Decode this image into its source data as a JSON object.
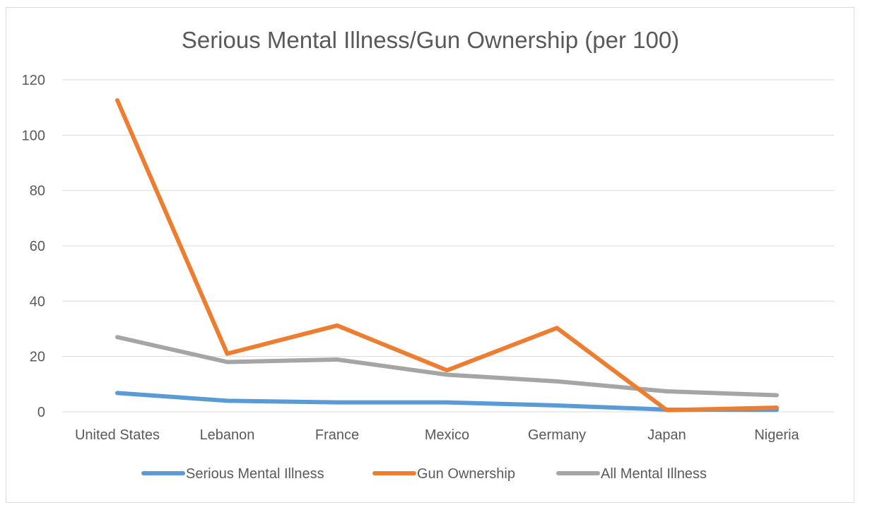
{
  "chart_data": {
    "type": "line",
    "title": "Serious Mental Illness/Gun Ownership (per 100)",
    "xlabel": "",
    "ylabel": "",
    "categories": [
      "United States",
      "Lebanon",
      "France",
      "Mexico",
      "Germany",
      "Japan",
      "Nigeria"
    ],
    "ylim": [
      0,
      120
    ],
    "yticks": [
      0,
      20,
      40,
      60,
      80,
      100,
      120
    ],
    "grid": true,
    "legend": "bottom",
    "series": [
      {
        "name": "Serious Mental Illness",
        "color": "#5b9bd5",
        "values": [
          6.8,
          4.0,
          3.4,
          3.4,
          2.3,
          0.8,
          0.7
        ]
      },
      {
        "name": "Gun Ownership",
        "color": "#ed7d31",
        "values": [
          112.6,
          21.0,
          31.2,
          15.0,
          30.3,
          0.6,
          1.5
        ]
      },
      {
        "name": "All Mental Illness",
        "color": "#a5a5a5",
        "values": [
          27.0,
          18.0,
          18.9,
          13.4,
          11.0,
          7.4,
          6.0
        ]
      }
    ]
  }
}
